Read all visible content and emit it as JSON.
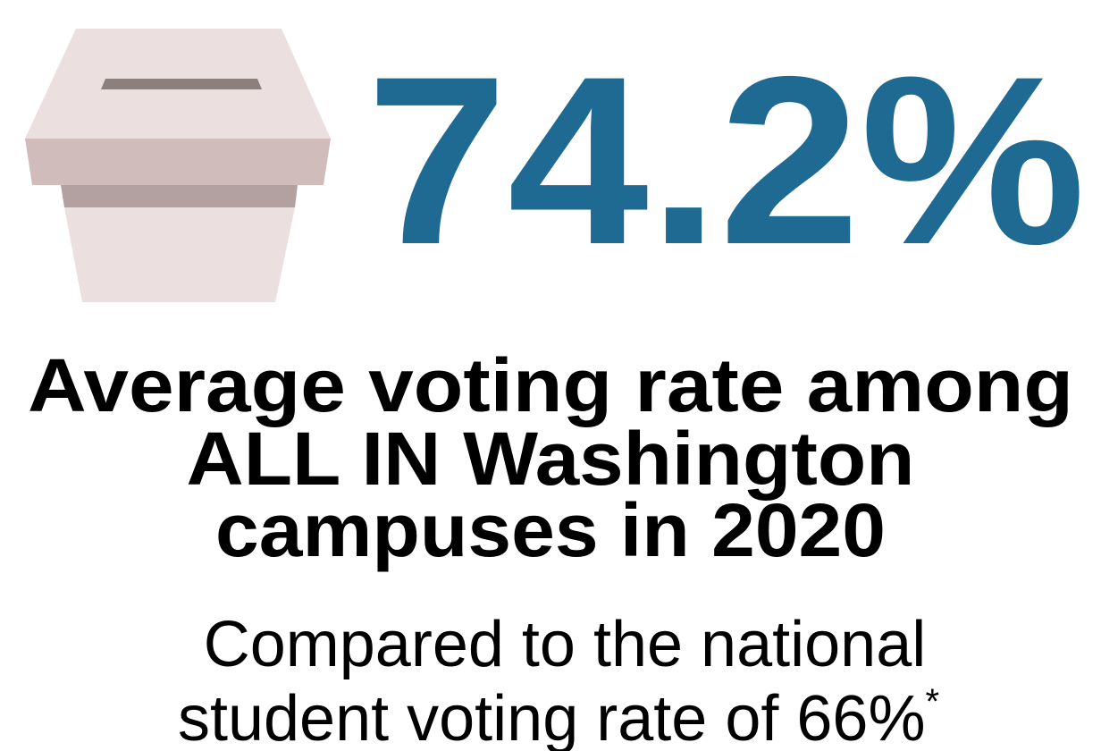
{
  "stat": {
    "value": "74.2%"
  },
  "heading": {
    "lines": [
      "Average voting rate among",
      "ALL IN Washington",
      "campuses in 2020"
    ]
  },
  "subtext": {
    "lines": [
      "Compared to the national",
      "student voting rate of 66%"
    ],
    "footnote_mark": "*"
  }
}
